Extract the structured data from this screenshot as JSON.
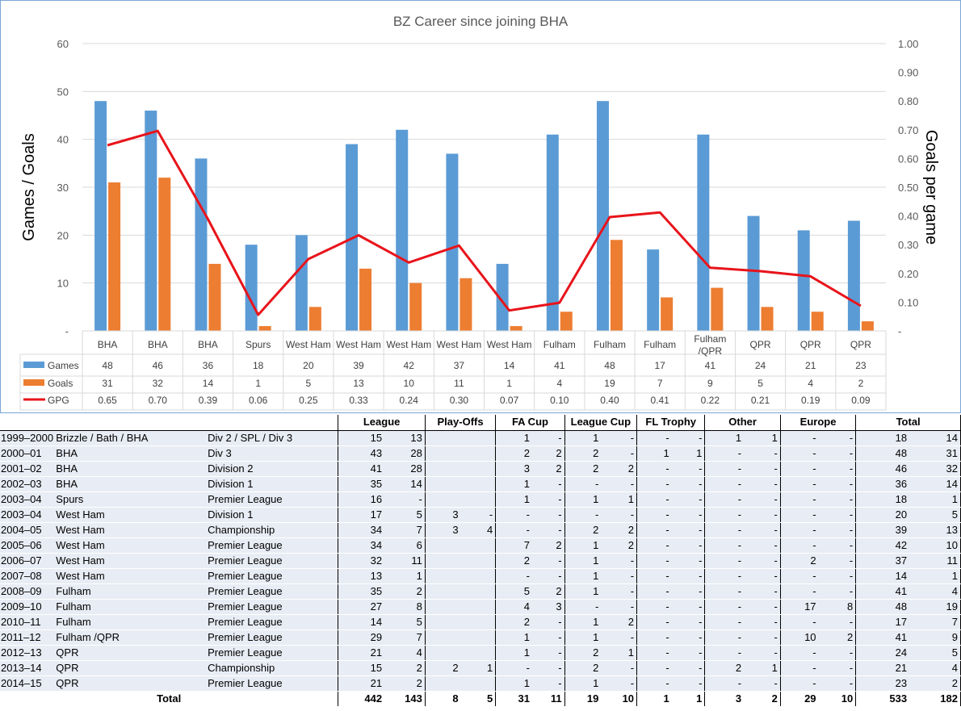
{
  "chart_data": {
    "type": "bar",
    "title": "BZ Career since joining BHA",
    "ylabel": "Games / Goals",
    "y2label": "Goals per game",
    "ylim": [
      0,
      60
    ],
    "y_ticks": [
      "-",
      "10",
      "20",
      "30",
      "40",
      "50",
      "60"
    ],
    "y2lim": [
      0,
      1.0
    ],
    "y2_ticks": [
      "-",
      "0.10",
      "0.20",
      "0.30",
      "0.40",
      "0.50",
      "0.60",
      "0.70",
      "0.80",
      "0.90",
      "1.00"
    ],
    "grid": true,
    "categories": [
      "BHA",
      "BHA",
      "BHA",
      "Spurs",
      "West Ham",
      "West Ham",
      "West Ham",
      "West Ham",
      "West Ham",
      "Fulham",
      "Fulham",
      "Fulham",
      "Fulham /QPR",
      "QPR",
      "QPR",
      "QPR"
    ],
    "series": [
      {
        "name": "Games",
        "type": "bar",
        "axis": "left",
        "color": "#5b9bd5",
        "values": [
          48,
          46,
          36,
          18,
          20,
          39,
          42,
          37,
          14,
          41,
          48,
          17,
          41,
          24,
          21,
          23
        ],
        "labels": [
          "48",
          "46",
          "36",
          "18",
          "20",
          "39",
          "42",
          "37",
          "14",
          "41",
          "48",
          "17",
          "41",
          "24",
          "21",
          "23"
        ]
      },
      {
        "name": "Goals",
        "type": "bar",
        "axis": "left",
        "color": "#ed7d31",
        "values": [
          31,
          32,
          14,
          1,
          5,
          13,
          10,
          11,
          1,
          4,
          19,
          7,
          9,
          5,
          4,
          2
        ],
        "labels": [
          "31",
          "32",
          "14",
          "1",
          "5",
          "13",
          "10",
          "11",
          "1",
          "4",
          "19",
          "7",
          "9",
          "5",
          "4",
          "2"
        ]
      },
      {
        "name": "GPG",
        "type": "line",
        "axis": "right",
        "color": "#e8141b",
        "values": [
          0.646,
          0.696,
          0.389,
          0.056,
          0.25,
          0.333,
          0.238,
          0.297,
          0.071,
          0.098,
          0.396,
          0.412,
          0.22,
          0.208,
          0.19,
          0.087
        ],
        "labels": [
          "0.65",
          "0.70",
          "0.39",
          "0.06",
          "0.25",
          "0.33",
          "0.24",
          "0.30",
          "0.07",
          "0.10",
          "0.40",
          "0.41",
          "0.22",
          "0.21",
          "0.19",
          "0.09"
        ]
      }
    ]
  },
  "table": {
    "groups": [
      "League",
      "Play-Offs",
      "FA Cup",
      "League Cup",
      "FL Trophy",
      "Other",
      "Europe",
      "Total"
    ],
    "rows": [
      {
        "season": "1999–2000",
        "club": "Brizzle / Bath / BHA",
        "div": "Div 2 / SPL / Div 3",
        "v": [
          "15",
          "13",
          "",
          "",
          "1",
          "-",
          "1",
          "-",
          "-",
          "-",
          "1",
          "1",
          "-",
          "-",
          "18",
          "14"
        ]
      },
      {
        "season": "2000–01",
        "club": "BHA",
        "div": "Div 3",
        "v": [
          "43",
          "28",
          "",
          "",
          "2",
          "2",
          "2",
          "-",
          "1",
          "1",
          "-",
          "-",
          "-",
          "-",
          "48",
          "31"
        ]
      },
      {
        "season": "2001–02",
        "club": "BHA",
        "div": "Division 2",
        "v": [
          "41",
          "28",
          "",
          "",
          "3",
          "2",
          "2",
          "2",
          "-",
          "-",
          "-",
          "-",
          "-",
          "-",
          "46",
          "32"
        ]
      },
      {
        "season": "2002–03",
        "club": "BHA",
        "div": "Division 1",
        "v": [
          "35",
          "14",
          "",
          "",
          "1",
          "-",
          "-",
          "-",
          "-",
          "-",
          "-",
          "-",
          "-",
          "-",
          "36",
          "14"
        ]
      },
      {
        "season": "2003–04",
        "club": "Spurs",
        "div": "Premier League",
        "v": [
          "16",
          "-",
          "",
          "",
          "1",
          "-",
          "1",
          "1",
          "-",
          "-",
          "-",
          "-",
          "-",
          "-",
          "18",
          "1"
        ]
      },
      {
        "season": "2003–04",
        "club": "West Ham",
        "div": "Division 1",
        "v": [
          "17",
          "5",
          "3",
          "-",
          "-",
          "-",
          "-",
          "-",
          "-",
          "-",
          "-",
          "-",
          "-",
          "-",
          "20",
          "5"
        ]
      },
      {
        "season": "2004–05",
        "club": "West Ham",
        "div": "Championship",
        "v": [
          "34",
          "7",
          "3",
          "4",
          "-",
          "-",
          "2",
          "2",
          "-",
          "-",
          "-",
          "-",
          "-",
          "-",
          "39",
          "13"
        ]
      },
      {
        "season": "2005–06",
        "club": "West Ham",
        "div": "Premier League",
        "v": [
          "34",
          "6",
          "",
          "",
          "7",
          "2",
          "1",
          "2",
          "-",
          "-",
          "-",
          "-",
          "-",
          "-",
          "42",
          "10"
        ]
      },
      {
        "season": "2006–07",
        "club": "West Ham",
        "div": "Premier League",
        "v": [
          "32",
          "11",
          "",
          "",
          "2",
          "-",
          "1",
          "-",
          "-",
          "-",
          "-",
          "-",
          "2",
          "-",
          "37",
          "11"
        ]
      },
      {
        "season": "2007–08",
        "club": "West Ham",
        "div": "Premier League",
        "v": [
          "13",
          "1",
          "",
          "",
          "-",
          "-",
          "1",
          "-",
          "-",
          "-",
          "-",
          "-",
          "-",
          "-",
          "14",
          "1"
        ]
      },
      {
        "season": "2008–09",
        "club": "Fulham",
        "div": "Premier League",
        "v": [
          "35",
          "2",
          "",
          "",
          "5",
          "2",
          "1",
          "-",
          "-",
          "-",
          "-",
          "-",
          "-",
          "-",
          "41",
          "4"
        ]
      },
      {
        "season": "2009–10",
        "club": "Fulham",
        "div": "Premier League",
        "v": [
          "27",
          "8",
          "",
          "",
          "4",
          "3",
          "-",
          "-",
          "-",
          "-",
          "-",
          "-",
          "17",
          "8",
          "48",
          "19"
        ]
      },
      {
        "season": "2010–11",
        "club": "Fulham",
        "div": "Premier League",
        "v": [
          "14",
          "5",
          "",
          "",
          "2",
          "-",
          "1",
          "2",
          "-",
          "-",
          "-",
          "-",
          "-",
          "-",
          "17",
          "7"
        ]
      },
      {
        "season": "2011–12",
        "club": "Fulham /QPR",
        "div": "Premier League",
        "v": [
          "29",
          "7",
          "",
          "",
          "1",
          "-",
          "1",
          "-",
          "-",
          "-",
          "-",
          "-",
          "10",
          "2",
          "41",
          "9"
        ]
      },
      {
        "season": "2012–13",
        "club": "QPR",
        "div": "Premier League",
        "v": [
          "21",
          "4",
          "",
          "",
          "1",
          "-",
          "2",
          "1",
          "-",
          "-",
          "-",
          "-",
          "-",
          "-",
          "24",
          "5"
        ]
      },
      {
        "season": "2013–14",
        "club": "QPR",
        "div": "Championship",
        "v": [
          "15",
          "2",
          "2",
          "1",
          "-",
          "-",
          "2",
          "-",
          "-",
          "-",
          "2",
          "1",
          "-",
          "-",
          "21",
          "4"
        ]
      },
      {
        "season": "2014–15",
        "club": "QPR",
        "div": "Premier League",
        "v": [
          "21",
          "2",
          "",
          "",
          "1",
          "-",
          "1",
          "-",
          "-",
          "-",
          "-",
          "-",
          "-",
          "-",
          "23",
          "2"
        ]
      }
    ],
    "total_label": "Total",
    "totals": [
      "442",
      "143",
      "8",
      "5",
      "31",
      "11",
      "19",
      "10",
      "1",
      "1",
      "3",
      "2",
      "29",
      "10",
      "533",
      "182"
    ]
  }
}
